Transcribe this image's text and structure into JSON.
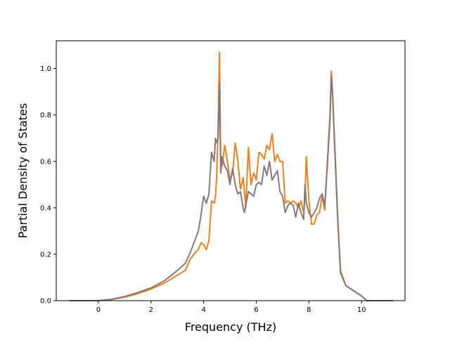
{
  "chart_data": {
    "type": "line",
    "title": "",
    "xlabel": "Frequency (THz)",
    "ylabel": "Partial Density of States",
    "xlim": [
      -1.6,
      11.65
    ],
    "ylim": [
      0.0,
      1.12
    ],
    "xticks": [
      0,
      2,
      4,
      6,
      8,
      10
    ],
    "yticks": [
      0.0,
      0.2,
      0.4,
      0.6,
      0.8,
      1.0
    ],
    "xtick_labels": [
      "0",
      "2",
      "4",
      "6",
      "8",
      "10"
    ],
    "ytick_labels": [
      "0.0",
      "0.2",
      "0.4",
      "0.6",
      "0.8",
      "1.0"
    ],
    "grid": false,
    "legend": "none",
    "series": [
      {
        "color": "#e8821f",
        "x": [
          -1.1,
          -0.5,
          0.0,
          0.5,
          1.0,
          1.5,
          2.0,
          2.5,
          3.0,
          3.3,
          3.5,
          3.7,
          3.8,
          3.9,
          4.0,
          4.1,
          4.2,
          4.3,
          4.4,
          4.45,
          4.5,
          4.55,
          4.6,
          4.65,
          4.7,
          4.8,
          4.9,
          5.0,
          5.1,
          5.2,
          5.3,
          5.4,
          5.5,
          5.55,
          5.6,
          5.7,
          5.8,
          5.9,
          6.0,
          6.1,
          6.2,
          6.3,
          6.4,
          6.5,
          6.6,
          6.7,
          6.8,
          6.9,
          7.0,
          7.1,
          7.2,
          7.3,
          7.4,
          7.5,
          7.6,
          7.7,
          7.8,
          7.85,
          7.9,
          8.0,
          8.1,
          8.2,
          8.3,
          8.4,
          8.5,
          8.6,
          8.7,
          8.8,
          8.85,
          8.9,
          9.0,
          9.1,
          9.2,
          9.4,
          9.6,
          9.8,
          10.0,
          10.2,
          10.6,
          11.2
        ],
        "y": [
          0.0,
          0.0,
          0.0,
          0.005,
          0.015,
          0.03,
          0.05,
          0.075,
          0.11,
          0.13,
          0.18,
          0.21,
          0.22,
          0.25,
          0.24,
          0.22,
          0.26,
          0.43,
          0.42,
          0.45,
          0.55,
          0.75,
          1.07,
          0.6,
          0.58,
          0.67,
          0.6,
          0.52,
          0.55,
          0.68,
          0.6,
          0.48,
          0.53,
          0.47,
          0.4,
          0.66,
          0.5,
          0.55,
          0.52,
          0.64,
          0.63,
          0.61,
          0.67,
          0.65,
          0.72,
          0.6,
          0.63,
          0.6,
          0.6,
          0.42,
          0.43,
          0.42,
          0.43,
          0.42,
          0.4,
          0.43,
          0.38,
          0.45,
          0.62,
          0.43,
          0.33,
          0.33,
          0.37,
          0.38,
          0.45,
          0.39,
          0.6,
          0.8,
          0.99,
          0.9,
          0.62,
          0.35,
          0.13,
          0.065,
          0.05,
          0.035,
          0.02,
          0.0,
          0.0,
          0.0
        ]
      },
      {
        "color": "#87787f",
        "x": [
          -1.1,
          -0.5,
          0.0,
          0.5,
          1.0,
          1.5,
          2.0,
          2.5,
          3.0,
          3.3,
          3.5,
          3.7,
          3.8,
          3.9,
          4.0,
          4.1,
          4.2,
          4.3,
          4.4,
          4.45,
          4.5,
          4.55,
          4.6,
          4.65,
          4.7,
          4.8,
          4.9,
          5.0,
          5.1,
          5.2,
          5.3,
          5.4,
          5.5,
          5.55,
          5.6,
          5.7,
          5.8,
          5.9,
          6.0,
          6.1,
          6.2,
          6.3,
          6.4,
          6.5,
          6.6,
          6.7,
          6.8,
          6.9,
          7.0,
          7.1,
          7.2,
          7.3,
          7.4,
          7.5,
          7.6,
          7.7,
          7.8,
          7.85,
          7.9,
          8.0,
          8.1,
          8.2,
          8.3,
          8.4,
          8.5,
          8.6,
          8.7,
          8.8,
          8.85,
          8.9,
          9.0,
          9.1,
          9.2,
          9.4,
          9.6,
          9.8,
          10.0,
          10.2,
          10.6,
          11.2
        ],
        "y": [
          0.0,
          0.0,
          0.0,
          0.006,
          0.018,
          0.035,
          0.055,
          0.085,
          0.13,
          0.16,
          0.21,
          0.27,
          0.3,
          0.37,
          0.45,
          0.42,
          0.46,
          0.64,
          0.6,
          0.7,
          0.68,
          0.7,
          0.94,
          0.55,
          0.62,
          0.58,
          0.56,
          0.5,
          0.57,
          0.5,
          0.46,
          0.47,
          0.4,
          0.38,
          0.41,
          0.47,
          0.46,
          0.45,
          0.5,
          0.51,
          0.5,
          0.58,
          0.54,
          0.6,
          0.52,
          0.54,
          0.56,
          0.47,
          0.45,
          0.38,
          0.41,
          0.42,
          0.41,
          0.36,
          0.42,
          0.38,
          0.35,
          0.5,
          0.42,
          0.38,
          0.36,
          0.38,
          0.4,
          0.44,
          0.46,
          0.41,
          0.58,
          0.78,
          0.97,
          0.88,
          0.6,
          0.33,
          0.12,
          0.065,
          0.05,
          0.035,
          0.02,
          0.0,
          0.0,
          0.0
        ]
      }
    ]
  }
}
